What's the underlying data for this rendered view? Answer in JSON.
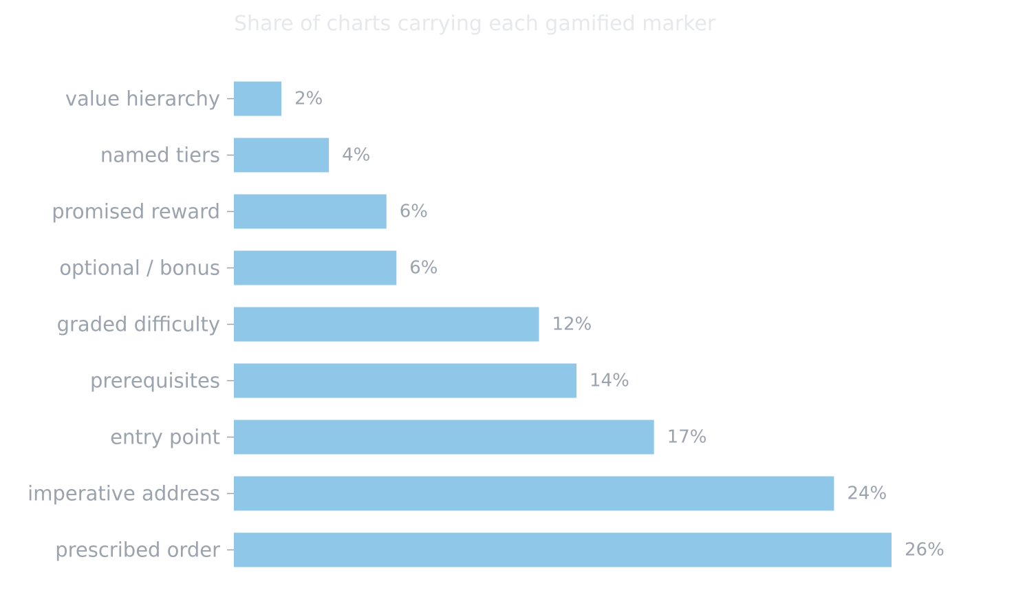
{
  "chart_data": {
    "type": "bar",
    "orientation": "horizontal",
    "title": "Share of charts carrying each gamified marker",
    "categories": [
      "value hierarchy",
      "named tiers",
      "promised reward",
      "optional / bonus",
      "graded difficulty",
      "prerequisites",
      "entry point",
      "imperative address",
      "prescribed order"
    ],
    "values": [
      1.9,
      3.8,
      6.1,
      6.5,
      12.2,
      13.7,
      16.8,
      24.0,
      26.3
    ],
    "value_labels": [
      "2%",
      "4%",
      "6%",
      "6%",
      "12%",
      "14%",
      "17%",
      "24%",
      "26%"
    ],
    "unit": "%",
    "xlim": [
      0,
      28
    ],
    "grid": false,
    "legend": "none",
    "colors": {
      "bar": "#8fc7e8",
      "label": "#9aa3ae",
      "title": "#e6e8ec"
    }
  }
}
